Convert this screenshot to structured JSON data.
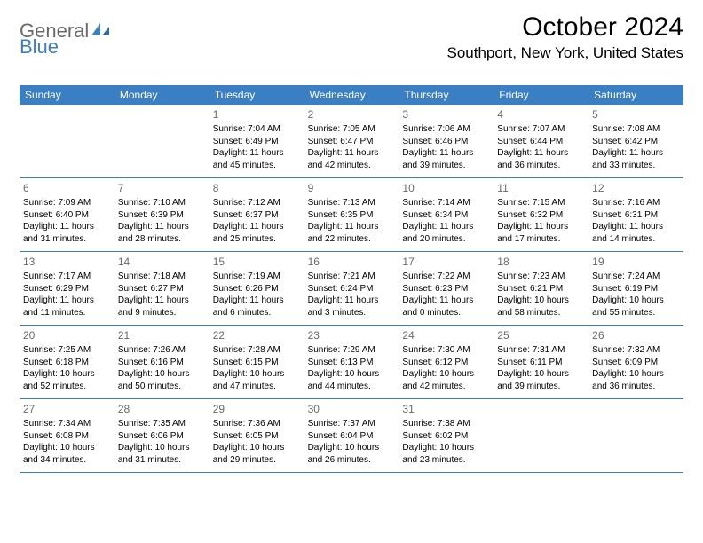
{
  "brand": {
    "part1": "General",
    "part2": "Blue"
  },
  "title": "October 2024",
  "location": "Southport, New York, United States",
  "colors": {
    "header_bg": "#3a7fc4",
    "header_text": "#ffffff",
    "day_num": "#6a6a6a",
    "body_text": "#000000",
    "row_border": "#3a7fc4",
    "logo_gray": "#6a6a6a",
    "logo_blue": "#3a7fc4",
    "background": "#ffffff"
  },
  "fonts": {
    "title_size": 30,
    "location_size": 17,
    "header_size": 12,
    "daynum_size": 12,
    "body_size": 10
  },
  "dayNames": [
    "Sunday",
    "Monday",
    "Tuesday",
    "Wednesday",
    "Thursday",
    "Friday",
    "Saturday"
  ],
  "layout": {
    "columns": 7,
    "firstDayOffset": 2,
    "weeks": 5
  },
  "days": [
    {
      "n": "1",
      "sunrise": "7:04 AM",
      "sunset": "6:49 PM",
      "daylight": "11 hours and 45 minutes."
    },
    {
      "n": "2",
      "sunrise": "7:05 AM",
      "sunset": "6:47 PM",
      "daylight": "11 hours and 42 minutes."
    },
    {
      "n": "3",
      "sunrise": "7:06 AM",
      "sunset": "6:46 PM",
      "daylight": "11 hours and 39 minutes."
    },
    {
      "n": "4",
      "sunrise": "7:07 AM",
      "sunset": "6:44 PM",
      "daylight": "11 hours and 36 minutes."
    },
    {
      "n": "5",
      "sunrise": "7:08 AM",
      "sunset": "6:42 PM",
      "daylight": "11 hours and 33 minutes."
    },
    {
      "n": "6",
      "sunrise": "7:09 AM",
      "sunset": "6:40 PM",
      "daylight": "11 hours and 31 minutes."
    },
    {
      "n": "7",
      "sunrise": "7:10 AM",
      "sunset": "6:39 PM",
      "daylight": "11 hours and 28 minutes."
    },
    {
      "n": "8",
      "sunrise": "7:12 AM",
      "sunset": "6:37 PM",
      "daylight": "11 hours and 25 minutes."
    },
    {
      "n": "9",
      "sunrise": "7:13 AM",
      "sunset": "6:35 PM",
      "daylight": "11 hours and 22 minutes."
    },
    {
      "n": "10",
      "sunrise": "7:14 AM",
      "sunset": "6:34 PM",
      "daylight": "11 hours and 20 minutes."
    },
    {
      "n": "11",
      "sunrise": "7:15 AM",
      "sunset": "6:32 PM",
      "daylight": "11 hours and 17 minutes."
    },
    {
      "n": "12",
      "sunrise": "7:16 AM",
      "sunset": "6:31 PM",
      "daylight": "11 hours and 14 minutes."
    },
    {
      "n": "13",
      "sunrise": "7:17 AM",
      "sunset": "6:29 PM",
      "daylight": "11 hours and 11 minutes."
    },
    {
      "n": "14",
      "sunrise": "7:18 AM",
      "sunset": "6:27 PM",
      "daylight": "11 hours and 9 minutes."
    },
    {
      "n": "15",
      "sunrise": "7:19 AM",
      "sunset": "6:26 PM",
      "daylight": "11 hours and 6 minutes."
    },
    {
      "n": "16",
      "sunrise": "7:21 AM",
      "sunset": "6:24 PM",
      "daylight": "11 hours and 3 minutes."
    },
    {
      "n": "17",
      "sunrise": "7:22 AM",
      "sunset": "6:23 PM",
      "daylight": "11 hours and 0 minutes."
    },
    {
      "n": "18",
      "sunrise": "7:23 AM",
      "sunset": "6:21 PM",
      "daylight": "10 hours and 58 minutes."
    },
    {
      "n": "19",
      "sunrise": "7:24 AM",
      "sunset": "6:19 PM",
      "daylight": "10 hours and 55 minutes."
    },
    {
      "n": "20",
      "sunrise": "7:25 AM",
      "sunset": "6:18 PM",
      "daylight": "10 hours and 52 minutes."
    },
    {
      "n": "21",
      "sunrise": "7:26 AM",
      "sunset": "6:16 PM",
      "daylight": "10 hours and 50 minutes."
    },
    {
      "n": "22",
      "sunrise": "7:28 AM",
      "sunset": "6:15 PM",
      "daylight": "10 hours and 47 minutes."
    },
    {
      "n": "23",
      "sunrise": "7:29 AM",
      "sunset": "6:13 PM",
      "daylight": "10 hours and 44 minutes."
    },
    {
      "n": "24",
      "sunrise": "7:30 AM",
      "sunset": "6:12 PM",
      "daylight": "10 hours and 42 minutes."
    },
    {
      "n": "25",
      "sunrise": "7:31 AM",
      "sunset": "6:11 PM",
      "daylight": "10 hours and 39 minutes."
    },
    {
      "n": "26",
      "sunrise": "7:32 AM",
      "sunset": "6:09 PM",
      "daylight": "10 hours and 36 minutes."
    },
    {
      "n": "27",
      "sunrise": "7:34 AM",
      "sunset": "6:08 PM",
      "daylight": "10 hours and 34 minutes."
    },
    {
      "n": "28",
      "sunrise": "7:35 AM",
      "sunset": "6:06 PM",
      "daylight": "10 hours and 31 minutes."
    },
    {
      "n": "29",
      "sunrise": "7:36 AM",
      "sunset": "6:05 PM",
      "daylight": "10 hours and 29 minutes."
    },
    {
      "n": "30",
      "sunrise": "7:37 AM",
      "sunset": "6:04 PM",
      "daylight": "10 hours and 26 minutes."
    },
    {
      "n": "31",
      "sunrise": "7:38 AM",
      "sunset": "6:02 PM",
      "daylight": "10 hours and 23 minutes."
    }
  ],
  "labels": {
    "sunrise": "Sunrise:",
    "sunset": "Sunset:",
    "daylight": "Daylight:"
  }
}
